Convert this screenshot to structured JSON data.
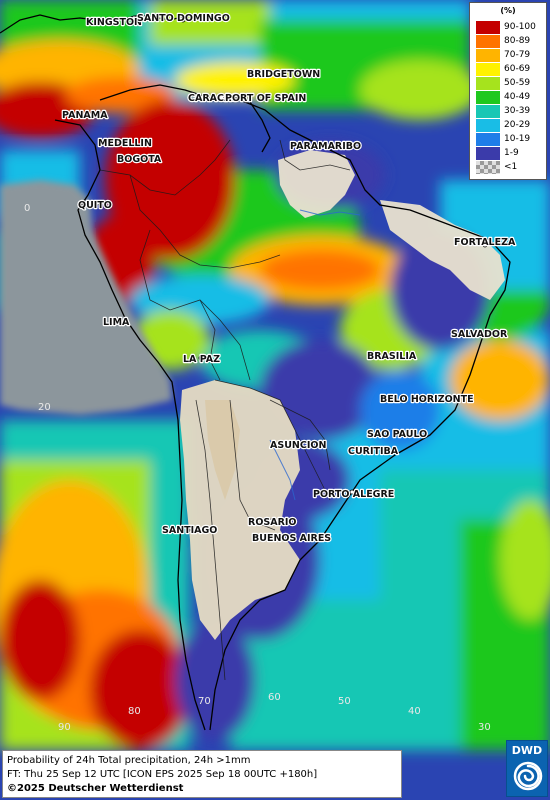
{
  "map": {
    "type": "precipitation-probability-map",
    "region": "South America",
    "colors": {
      "ocean_dry": "#1e35b4",
      "land_dry": "#e9e2cf",
      "no_data": "#8c969c",
      "coast": "#000000"
    }
  },
  "legend": {
    "title": "(%)",
    "items": [
      {
        "label": "90-100",
        "color": "#c40000"
      },
      {
        "label": "80-89",
        "color": "#ff7300"
      },
      {
        "label": "70-79",
        "color": "#ffb400"
      },
      {
        "label": "60-69",
        "color": "#fff200"
      },
      {
        "label": "50-59",
        "color": "#a6e31d"
      },
      {
        "label": "40-49",
        "color": "#1fc81f"
      },
      {
        "label": "30-39",
        "color": "#18c7b4"
      },
      {
        "label": "20-29",
        "color": "#19bde6"
      },
      {
        "label": "10-19",
        "color": "#1f7ee8"
      },
      {
        "label": "1-9",
        "color": "#3b3baa"
      },
      {
        "label": "<1",
        "color": "#bfbfbf"
      }
    ]
  },
  "cities": [
    {
      "name": "KINGSTON"
    },
    {
      "name": "SANTO DOMINGO"
    },
    {
      "name": "BRIDGETOWN"
    },
    {
      "name": "CARACAS"
    },
    {
      "name": "PORT OF SPAIN"
    },
    {
      "name": "PANAMA"
    },
    {
      "name": "PARAMARIBO"
    },
    {
      "name": "MEDELLIN"
    },
    {
      "name": "BOGOTA"
    },
    {
      "name": "QUITO"
    },
    {
      "name": "FORTALEZA"
    },
    {
      "name": "LIMA"
    },
    {
      "name": "SALVADOR"
    },
    {
      "name": "LA PAZ"
    },
    {
      "name": "BRASILIA"
    },
    {
      "name": "BELO HORIZONTE"
    },
    {
      "name": "SAO PAULO"
    },
    {
      "name": "ASUNCION"
    },
    {
      "name": "CURITIBA"
    },
    {
      "name": "PORTO ALEGRE"
    },
    {
      "name": "ROSARIO"
    },
    {
      "name": "SANTIAGO"
    },
    {
      "name": "BUENOS AIRES"
    }
  ],
  "grid_labels": {
    "lat": [
      "0",
      "20"
    ],
    "lon": [
      "90",
      "80",
      "70",
      "60",
      "50",
      "40",
      "30"
    ]
  },
  "caption": {
    "line1": "Probability of 24h Total precipitation, 24h >1mm",
    "line2": "FT: Thu 25 Sep 12 UTC [ICON EPS 2025 Sep 18 00UTC +180h]",
    "copyright": "©2025 Deutscher Wetterdienst"
  },
  "logo": {
    "text": "DWD"
  }
}
